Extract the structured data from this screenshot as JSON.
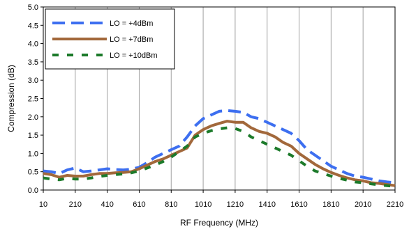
{
  "chart_data": {
    "type": "line",
    "xlabel": "RF Frequency (MHz)",
    "ylabel": "Compression (dB)",
    "xlim": [
      10,
      2210
    ],
    "ylim": [
      0,
      5
    ],
    "x_ticks": [
      "10",
      "210",
      "410",
      "610",
      "810",
      "1010",
      "1210",
      "1410",
      "1610",
      "1810",
      "2010",
      "2210"
    ],
    "y_ticks": [
      "0.0",
      "0.5",
      "1.0",
      "1.5",
      "2.0",
      "2.5",
      "3.0",
      "3.5",
      "4.0",
      "4.5",
      "5.0"
    ],
    "grid": "vertical",
    "legend_position": "top-left",
    "series": [
      {
        "name": "LO = +4dBm",
        "color": "#3d6ff0",
        "style": "dashed",
        "x": [
          10,
          60,
          110,
          160,
          210,
          260,
          310,
          360,
          410,
          460,
          510,
          560,
          610,
          660,
          710,
          760,
          810,
          860,
          910,
          960,
          1010,
          1060,
          1110,
          1160,
          1210,
          1260,
          1310,
          1360,
          1410,
          1460,
          1510,
          1560,
          1610,
          1660,
          1710,
          1760,
          1810,
          1860,
          1910,
          1960,
          2010,
          2060,
          2110,
          2160,
          2210
        ],
        "values": [
          0.52,
          0.5,
          0.45,
          0.55,
          0.6,
          0.5,
          0.52,
          0.55,
          0.58,
          0.56,
          0.55,
          0.57,
          0.62,
          0.75,
          0.9,
          1.0,
          1.1,
          1.2,
          1.45,
          1.75,
          1.95,
          2.05,
          2.15,
          2.17,
          2.15,
          2.12,
          2.0,
          1.95,
          1.85,
          1.75,
          1.65,
          1.55,
          1.35,
          1.1,
          0.95,
          0.8,
          0.65,
          0.55,
          0.45,
          0.38,
          0.35,
          0.3,
          0.25,
          0.22,
          0.2
        ]
      },
      {
        "name": "LO = +7dBm",
        "color": "#a2683b",
        "style": "solid",
        "x": [
          10,
          60,
          110,
          160,
          210,
          260,
          310,
          360,
          410,
          460,
          510,
          560,
          610,
          660,
          710,
          760,
          810,
          860,
          910,
          960,
          1010,
          1060,
          1110,
          1160,
          1210,
          1260,
          1310,
          1360,
          1410,
          1460,
          1510,
          1560,
          1610,
          1660,
          1710,
          1760,
          1810,
          1860,
          1910,
          1960,
          2010,
          2060,
          2110,
          2160,
          2210
        ],
        "values": [
          0.45,
          0.42,
          0.35,
          0.4,
          0.38,
          0.38,
          0.42,
          0.45,
          0.45,
          0.47,
          0.48,
          0.5,
          0.58,
          0.68,
          0.78,
          0.85,
          0.95,
          1.05,
          1.15,
          1.5,
          1.65,
          1.75,
          1.82,
          1.88,
          1.85,
          1.85,
          1.7,
          1.6,
          1.55,
          1.45,
          1.3,
          1.2,
          1.0,
          0.85,
          0.7,
          0.58,
          0.48,
          0.4,
          0.33,
          0.28,
          0.25,
          0.2,
          0.18,
          0.15,
          0.12
        ]
      },
      {
        "name": "LO = +10dBm",
        "color": "#1c7a2a",
        "style": "dashed",
        "x": [
          10,
          60,
          110,
          160,
          210,
          260,
          310,
          360,
          410,
          460,
          510,
          560,
          610,
          660,
          710,
          760,
          810,
          860,
          910,
          960,
          1010,
          1060,
          1110,
          1160,
          1210,
          1260,
          1310,
          1360,
          1410,
          1460,
          1510,
          1560,
          1610,
          1660,
          1710,
          1760,
          1810,
          1860,
          1910,
          1960,
          2010,
          2060,
          2110,
          2160,
          2210
        ],
        "values": [
          0.33,
          0.3,
          0.28,
          0.32,
          0.3,
          0.3,
          0.33,
          0.37,
          0.4,
          0.42,
          0.44,
          0.47,
          0.52,
          0.6,
          0.68,
          0.78,
          0.9,
          1.05,
          1.2,
          1.45,
          1.55,
          1.62,
          1.67,
          1.7,
          1.68,
          1.6,
          1.45,
          1.35,
          1.25,
          1.15,
          1.05,
          0.95,
          0.8,
          0.65,
          0.52,
          0.45,
          0.38,
          0.32,
          0.27,
          0.22,
          0.2,
          0.17,
          0.14,
          0.12,
          0.1
        ]
      }
    ]
  }
}
